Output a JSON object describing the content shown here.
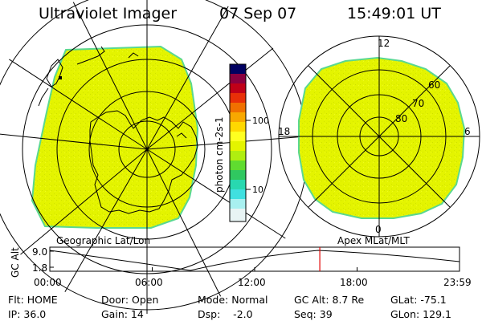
{
  "header": {
    "instrument": "Ultraviolet Imager",
    "date": "07 Sep 07",
    "time": "15:49:01 UT"
  },
  "colors": {
    "emission_fill": "#e4f400",
    "emission_speckle": "#d2e400",
    "emission_rim": "#5ad890",
    "grid": "#000000",
    "marker": "#e00000"
  },
  "colorbar": {
    "label": "photon cm-2s-1",
    "ticks": [
      "100",
      "10"
    ]
  },
  "geo_panel": {
    "label": "Geographic Lat/Lon"
  },
  "mag_panel": {
    "label": "Apex MLat/MLT",
    "mlt_labels": [
      "12",
      "18",
      "6",
      "0"
    ],
    "lat_labels": [
      "60",
      "70",
      "80"
    ]
  },
  "orbit_plot": {
    "ylabel": "GC Alt",
    "yticks": [
      "9.0",
      "1.8"
    ],
    "xticks": [
      "00:00",
      "06:00",
      "12:00",
      "18:00",
      "23:59"
    ],
    "current_time_fraction": 0.659
  },
  "info": {
    "flt": "Flt: HOME",
    "door": "Door: Open",
    "mode": "Mode: Normal",
    "gc_alt": "GC Alt: 8.7 Re",
    "glat": "GLat: -75.1",
    "ip": "IP: 36.0",
    "gain": "Gain: 14",
    "dsp": "Dsp:    -2.0",
    "seq": "Seq: 39",
    "glon": "GLon: 129.1"
  }
}
